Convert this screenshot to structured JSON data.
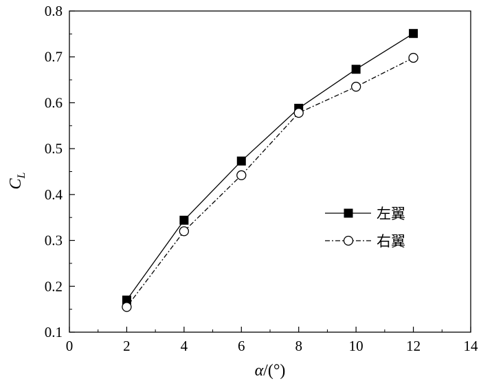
{
  "chart_data": {
    "type": "line",
    "xlabel_main": "α",
    "xlabel_unit": "/(°)",
    "ylabel_main": "C",
    "ylabel_sub": "L",
    "xlim": [
      0,
      14
    ],
    "ylim": [
      0.1,
      0.8
    ],
    "xticks": [
      "0",
      "2",
      "4",
      "6",
      "8",
      "10",
      "12",
      "14"
    ],
    "yticks": [
      "0.1",
      "0.2",
      "0.3",
      "0.4",
      "0.5",
      "0.6",
      "0.7",
      "0.8"
    ],
    "x": [
      2,
      4,
      6,
      8,
      10,
      12
    ],
    "series": [
      {
        "name": "左翼",
        "values": [
          0.17,
          0.344,
          0.473,
          0.588,
          0.673,
          0.751
        ],
        "marker": "filled-square",
        "line": "solid",
        "color": "#000000"
      },
      {
        "name": "右翼",
        "values": [
          0.155,
          0.32,
          0.442,
          0.578,
          0.635,
          0.698
        ],
        "marker": "open-circle",
        "line": "dash-dot",
        "color": "#000000"
      }
    ],
    "legend_position": "right-middle",
    "grid": false
  }
}
